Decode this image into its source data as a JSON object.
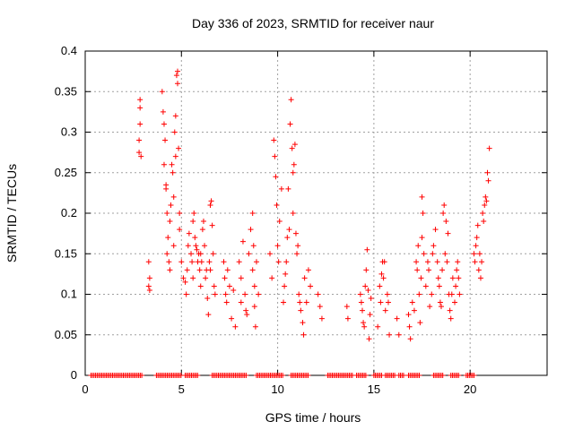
{
  "chart_data": {
    "type": "scatter",
    "title": "Day 336 of 2023, SRMTID for receiver naur",
    "xlabel": "GPS time / hours",
    "ylabel": "SRMTID / TECUs",
    "xlim": [
      0,
      24
    ],
    "ylim": [
      0,
      0.4
    ],
    "xticks": [
      0,
      5,
      10,
      15,
      20
    ],
    "xtick_labels": [
      "0",
      "5",
      "10",
      "15",
      "20"
    ],
    "yticks": [
      0,
      0.05,
      0.1,
      0.15,
      0.2,
      0.25,
      0.3,
      0.35,
      0.4
    ],
    "ytick_labels": [
      "0",
      "0.05",
      "0.1",
      "0.15",
      "0.2",
      "0.25",
      "0.3",
      "0.35",
      "0.4"
    ],
    "grid": true,
    "marker": "+",
    "color": "#ff0000",
    "series": [
      {
        "name": "SRMTID",
        "points": [
          [
            2.8,
            0.275
          ],
          [
            2.8,
            0.29
          ],
          [
            2.85,
            0.31
          ],
          [
            2.85,
            0.33
          ],
          [
            2.85,
            0.34
          ],
          [
            2.9,
            0.27
          ],
          [
            3.3,
            0.14
          ],
          [
            3.3,
            0.11
          ],
          [
            3.35,
            0.12
          ],
          [
            3.35,
            0.105
          ],
          [
            4.0,
            0.35
          ],
          [
            4.05,
            0.325
          ],
          [
            4.1,
            0.31
          ],
          [
            4.1,
            0.26
          ],
          [
            4.15,
            0.29
          ],
          [
            4.2,
            0.235
          ],
          [
            4.25,
            0.2
          ],
          [
            4.2,
            0.23
          ],
          [
            4.3,
            0.17
          ],
          [
            4.25,
            0.15
          ],
          [
            4.35,
            0.14
          ],
          [
            4.4,
            0.13
          ],
          [
            4.4,
            0.19
          ],
          [
            4.45,
            0.21
          ],
          [
            4.5,
            0.26
          ],
          [
            4.55,
            0.25
          ],
          [
            4.6,
            0.22
          ],
          [
            4.6,
            0.16
          ],
          [
            4.65,
            0.3
          ],
          [
            4.7,
            0.32
          ],
          [
            4.7,
            0.27
          ],
          [
            4.75,
            0.37
          ],
          [
            4.8,
            0.36
          ],
          [
            4.8,
            0.375
          ],
          [
            4.85,
            0.28
          ],
          [
            4.9,
            0.2
          ],
          [
            4.9,
            0.18
          ],
          [
            5.0,
            0.14
          ],
          [
            5.1,
            0.12
          ],
          [
            5.2,
            0.115
          ],
          [
            5.25,
            0.1
          ],
          [
            5.3,
            0.13
          ],
          [
            5.35,
            0.16
          ],
          [
            5.4,
            0.175
          ],
          [
            5.5,
            0.15
          ],
          [
            5.55,
            0.14
          ],
          [
            5.6,
            0.12
          ],
          [
            5.6,
            0.19
          ],
          [
            5.65,
            0.2
          ],
          [
            5.7,
            0.17
          ],
          [
            5.75,
            0.16
          ],
          [
            5.8,
            0.155
          ],
          [
            5.85,
            0.14
          ],
          [
            5.9,
            0.15
          ],
          [
            5.95,
            0.13
          ],
          [
            6.0,
            0.11
          ],
          [
            6.0,
            0.15
          ],
          [
            6.05,
            0.14
          ],
          [
            6.1,
            0.18
          ],
          [
            6.15,
            0.19
          ],
          [
            6.2,
            0.16
          ],
          [
            6.25,
            0.12
          ],
          [
            6.3,
            0.13
          ],
          [
            6.35,
            0.095
          ],
          [
            6.4,
            0.075
          ],
          [
            6.45,
            0.14
          ],
          [
            6.5,
            0.13
          ],
          [
            6.5,
            0.21
          ],
          [
            6.55,
            0.215
          ],
          [
            6.6,
            0.185
          ],
          [
            6.65,
            0.15
          ],
          [
            6.7,
            0.11
          ],
          [
            6.75,
            0.1
          ],
          [
            7.2,
            0.14
          ],
          [
            7.25,
            0.12
          ],
          [
            7.3,
            0.1
          ],
          [
            7.35,
            0.09
          ],
          [
            7.4,
            0.13
          ],
          [
            7.5,
            0.11
          ],
          [
            7.6,
            0.07
          ],
          [
            7.7,
            0.105
          ],
          [
            7.8,
            0.06
          ],
          [
            8.0,
            0.14
          ],
          [
            8.1,
            0.12
          ],
          [
            8.1,
            0.09
          ],
          [
            8.2,
            0.165
          ],
          [
            8.3,
            0.1
          ],
          [
            8.35,
            0.08
          ],
          [
            8.4,
            0.075
          ],
          [
            8.5,
            0.15
          ],
          [
            8.6,
            0.18
          ],
          [
            8.7,
            0.13
          ],
          [
            8.7,
            0.2
          ],
          [
            8.75,
            0.16
          ],
          [
            8.8,
            0.11
          ],
          [
            8.8,
            0.085
          ],
          [
            8.85,
            0.06
          ],
          [
            8.9,
            0.14
          ],
          [
            9.0,
            0.1
          ],
          [
            9.6,
            0.15
          ],
          [
            9.7,
            0.12
          ],
          [
            9.8,
            0.29
          ],
          [
            9.85,
            0.27
          ],
          [
            9.9,
            0.245
          ],
          [
            9.95,
            0.21
          ],
          [
            10.0,
            0.16
          ],
          [
            10.05,
            0.14
          ],
          [
            10.1,
            0.19
          ],
          [
            10.2,
            0.23
          ],
          [
            10.3,
            0.09
          ],
          [
            10.35,
            0.11
          ],
          [
            10.4,
            0.125
          ],
          [
            10.45,
            0.14
          ],
          [
            10.5,
            0.17
          ],
          [
            10.55,
            0.23
          ],
          [
            10.6,
            0.18
          ],
          [
            10.65,
            0.31
          ],
          [
            10.7,
            0.34
          ],
          [
            10.75,
            0.28
          ],
          [
            10.8,
            0.25
          ],
          [
            10.8,
            0.2
          ],
          [
            10.85,
            0.26
          ],
          [
            10.9,
            0.285
          ],
          [
            10.95,
            0.175
          ],
          [
            11.0,
            0.15
          ],
          [
            11.05,
            0.16
          ],
          [
            11.1,
            0.1
          ],
          [
            11.15,
            0.09
          ],
          [
            11.2,
            0.08
          ],
          [
            11.3,
            0.065
          ],
          [
            11.35,
            0.05
          ],
          [
            11.4,
            0.12
          ],
          [
            11.5,
            0.09
          ],
          [
            11.6,
            0.13
          ],
          [
            11.7,
            0.11
          ],
          [
            12.1,
            0.1
          ],
          [
            12.2,
            0.085
          ],
          [
            12.3,
            0.07
          ],
          [
            13.6,
            0.085
          ],
          [
            13.65,
            0.07
          ],
          [
            14.3,
            0.1
          ],
          [
            14.35,
            0.09
          ],
          [
            14.4,
            0.08
          ],
          [
            14.45,
            0.065
          ],
          [
            14.5,
            0.06
          ],
          [
            14.55,
            0.11
          ],
          [
            14.6,
            0.13
          ],
          [
            14.65,
            0.155
          ],
          [
            14.7,
            0.105
          ],
          [
            14.75,
            0.045
          ],
          [
            14.8,
            0.075
          ],
          [
            14.85,
            0.095
          ],
          [
            15.2,
            0.06
          ],
          [
            15.3,
            0.11
          ],
          [
            15.35,
            0.09
          ],
          [
            15.4,
            0.125
          ],
          [
            15.45,
            0.14
          ],
          [
            15.5,
            0.12
          ],
          [
            15.55,
            0.14
          ],
          [
            15.6,
            0.08
          ],
          [
            15.7,
            0.1
          ],
          [
            15.75,
            0.09
          ],
          [
            15.8,
            0.05
          ],
          [
            16.2,
            0.07
          ],
          [
            16.3,
            0.05
          ],
          [
            16.8,
            0.075
          ],
          [
            16.85,
            0.06
          ],
          [
            16.9,
            0.045
          ],
          [
            17.0,
            0.09
          ],
          [
            17.1,
            0.08
          ],
          [
            17.2,
            0.14
          ],
          [
            17.25,
            0.13
          ],
          [
            17.3,
            0.16
          ],
          [
            17.35,
            0.1
          ],
          [
            17.4,
            0.065
          ],
          [
            17.45,
            0.12
          ],
          [
            17.5,
            0.17
          ],
          [
            17.5,
            0.22
          ],
          [
            17.55,
            0.2
          ],
          [
            17.6,
            0.15
          ],
          [
            17.7,
            0.11
          ],
          [
            17.8,
            0.14
          ],
          [
            17.85,
            0.13
          ],
          [
            17.9,
            0.085
          ],
          [
            18.0,
            0.1
          ],
          [
            18.05,
            0.15
          ],
          [
            18.1,
            0.16
          ],
          [
            18.2,
            0.18
          ],
          [
            18.3,
            0.14
          ],
          [
            18.35,
            0.12
          ],
          [
            18.4,
            0.11
          ],
          [
            18.45,
            0.09
          ],
          [
            18.5,
            0.085
          ],
          [
            18.55,
            0.13
          ],
          [
            18.6,
            0.2
          ],
          [
            18.65,
            0.21
          ],
          [
            18.7,
            0.15
          ],
          [
            18.75,
            0.19
          ],
          [
            18.8,
            0.14
          ],
          [
            18.85,
            0.175
          ],
          [
            18.9,
            0.1
          ],
          [
            18.95,
            0.08
          ],
          [
            19.0,
            0.07
          ],
          [
            19.05,
            0.1
          ],
          [
            19.1,
            0.12
          ],
          [
            19.2,
            0.09
          ],
          [
            19.25,
            0.11
          ],
          [
            19.3,
            0.13
          ],
          [
            19.35,
            0.14
          ],
          [
            19.4,
            0.12
          ],
          [
            19.45,
            0.1
          ],
          [
            20.2,
            0.15
          ],
          [
            20.25,
            0.14
          ],
          [
            20.3,
            0.16
          ],
          [
            20.35,
            0.17
          ],
          [
            20.4,
            0.185
          ],
          [
            20.45,
            0.13
          ],
          [
            20.5,
            0.15
          ],
          [
            20.55,
            0.12
          ],
          [
            20.6,
            0.14
          ],
          [
            20.65,
            0.2
          ],
          [
            20.7,
            0.19
          ],
          [
            20.75,
            0.21
          ],
          [
            20.8,
            0.22
          ],
          [
            20.85,
            0.215
          ],
          [
            20.9,
            0.25
          ],
          [
            20.95,
            0.24
          ],
          [
            21.0,
            0.28
          ]
        ],
        "zero_hours": [
          [
            0.3,
            3.0
          ],
          [
            3.7,
            5.0
          ],
          [
            5.2,
            5.9
          ],
          [
            6.6,
            8.4
          ],
          [
            8.9,
            10.3
          ],
          [
            10.7,
            11.6
          ],
          [
            12.6,
            13.9
          ],
          [
            14.1,
            14.6
          ],
          [
            15.0,
            15.4
          ],
          [
            15.6,
            16.1
          ],
          [
            16.3,
            16.6
          ],
          [
            16.8,
            17.4
          ],
          [
            18.1,
            18.6
          ],
          [
            19.0,
            19.4
          ],
          [
            19.8,
            20.2
          ]
        ]
      }
    ]
  }
}
